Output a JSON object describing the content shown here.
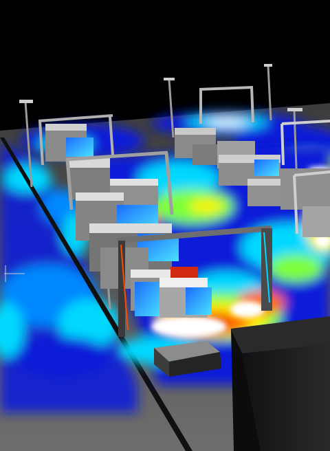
{
  "scene": {
    "description_free": true,
    "heatmap_palette": [
      "#0a1fd8",
      "#0088ff",
      "#00d8ff",
      "#7dff3a",
      "#fff200",
      "#ff6a00",
      "#e10000",
      "#ffffff"
    ],
    "background": "#000000",
    "floor_gray": "#5c5c5c"
  }
}
